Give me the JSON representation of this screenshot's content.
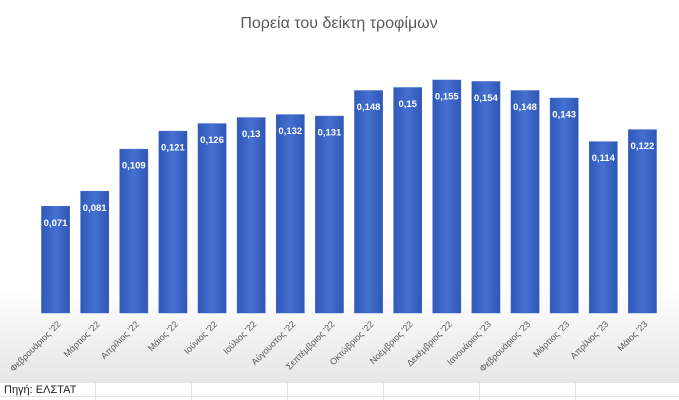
{
  "chart_data": {
    "type": "bar",
    "title": "Πορεία του δείκτη τροφίμων",
    "categories": [
      "Φεβρουάριος '22",
      "Μάρτιος '22",
      "Απρίλιος '22",
      "Μάιος '22",
      "Ιούνιος '22",
      "Ιούλιος '22",
      "Αύγουστος '22",
      "Σεπτέμβριος '22",
      "Οκτώβριος '22",
      "Νοέμβριος '22",
      "Δεκέμβριος '22",
      "Ιανουάριος '23",
      "Φεβρουάριος '23",
      "Μάρτιος '23",
      "Απρίλιος '23",
      "Μάιος '23"
    ],
    "values": [
      0.071,
      0.081,
      0.109,
      0.121,
      0.126,
      0.13,
      0.132,
      0.131,
      0.148,
      0.15,
      0.155,
      0.154,
      0.148,
      0.143,
      0.114,
      0.122
    ],
    "value_labels": [
      "0,071",
      "0,081",
      "0,109",
      "0,121",
      "0,126",
      "0,13",
      "0,132",
      "0,131",
      "0,148",
      "0,15",
      "0,155",
      "0,154",
      "0,148",
      "0,143",
      "0,114",
      "0,122"
    ],
    "color": "#3f67c6",
    "source": "Πηγή: ΕΛΣΤΑΤ"
  }
}
